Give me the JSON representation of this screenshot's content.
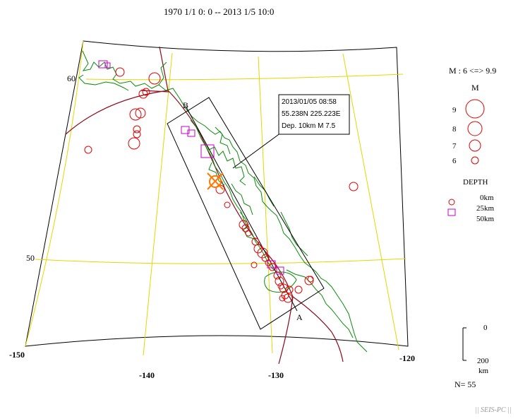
{
  "title": "1970 1/1 0: 0 -- 2013 1/5 10:0",
  "lat_labels": [
    {
      "text": "60",
      "lat": 60
    },
    {
      "text": "50",
      "lat": 50
    }
  ],
  "lon_labels": [
    {
      "text": "-150",
      "lon": -150
    },
    {
      "text": "-140",
      "lon": -140
    },
    {
      "text": "-130",
      "lon": -130
    },
    {
      "text": "-120",
      "lon": -120
    }
  ],
  "event": {
    "date": "2013/01/05 08:58",
    "coords": "55.238N   225.223E",
    "depth_mag": "Dep. 10km    M 7.5"
  },
  "section": {
    "end_a": "A",
    "end_b": "B"
  },
  "legend": {
    "mag_range": "M : 6 <=> 9.9",
    "mag_title": "M",
    "mags": [
      "9",
      "8",
      "7",
      "6"
    ],
    "depth_title": "DEPTH",
    "depths": [
      "0km",
      "25km",
      "50km"
    ]
  },
  "depth_scale": {
    "top": "0",
    "bottom": "200",
    "unit": "km"
  },
  "count": "N= 55",
  "footer": "|| SEIS-PC ||",
  "colors": {
    "grid": "#e0d800",
    "coast": "#0a8a0a",
    "plate_boundary": "#8b0a1e",
    "shallow_event": "#e00000",
    "deep_event": "#c800c8",
    "main_shock": "#ff7800"
  },
  "map_extent": {
    "lon_min": -150,
    "lon_max": -120,
    "lat_min": 45,
    "lat_max": 62
  }
}
